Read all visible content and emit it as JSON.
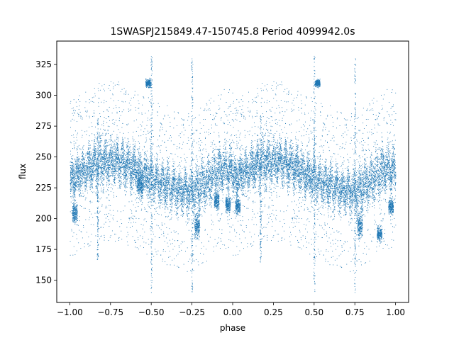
{
  "chart_data": {
    "type": "scatter",
    "title": "1SWASPJ215849.47-150745.8 Period 4099942.0s",
    "xlabel": "phase",
    "ylabel": "flux",
    "xlim": [
      -1.08,
      1.08
    ],
    "ylim": [
      132,
      344
    ],
    "x_ticks": [
      -1.0,
      -0.75,
      -0.5,
      -0.25,
      0.0,
      0.25,
      0.5,
      0.75,
      1.0
    ],
    "x_tick_labels": [
      "−1.00",
      "−0.75",
      "−0.50",
      "−0.25",
      "0.00",
      "0.25",
      "0.50",
      "0.75",
      "1.00"
    ],
    "y_ticks": [
      150,
      175,
      200,
      225,
      250,
      275,
      300,
      325
    ],
    "y_tick_labels": [
      "150",
      "175",
      "200",
      "225",
      "250",
      "275",
      "300",
      "325"
    ],
    "grid": false,
    "marker_color": "#1f77b4",
    "curve_phase": [
      0.0,
      0.05,
      0.1,
      0.15,
      0.2,
      0.25,
      0.3,
      0.35,
      0.4,
      0.45,
      0.5,
      0.55,
      0.6,
      0.65,
      0.7,
      0.75,
      0.8,
      0.85,
      0.9,
      0.95,
      1.0
    ],
    "curve_flux": [
      232,
      236,
      240,
      244,
      246,
      247,
      246,
      244,
      240,
      236,
      232,
      230,
      227,
      224,
      222,
      222,
      226,
      232,
      238,
      241,
      239
    ],
    "curve_spread": [
      14,
      14,
      14,
      16,
      18,
      15,
      14,
      14,
      14,
      14,
      14,
      14,
      14,
      14,
      14,
      15,
      16,
      16,
      18,
      16,
      14
    ],
    "clumps": [
      {
        "phase": -0.97,
        "flux": 205,
        "spread": 8
      },
      {
        "phase": -0.57,
        "flux": 228,
        "spread": 10
      },
      {
        "phase": -0.52,
        "flux": 310,
        "spread": 3
      },
      {
        "phase": -0.22,
        "flux": 195,
        "spread": 10
      },
      {
        "phase": -0.1,
        "flux": 215,
        "spread": 7
      },
      {
        "phase": -0.03,
        "flux": 212,
        "spread": 6
      },
      {
        "phase": 0.03,
        "flux": 210,
        "spread": 6
      },
      {
        "phase": 0.52,
        "flux": 310,
        "spread": 3
      },
      {
        "phase": 0.78,
        "flux": 195,
        "spread": 10
      },
      {
        "phase": 0.9,
        "flux": 188,
        "spread": 6
      },
      {
        "phase": 0.97,
        "flux": 210,
        "spread": 6
      }
    ],
    "spikes": [
      {
        "phase": -0.5,
        "from": 140,
        "to": 332
      },
      {
        "phase": -0.25,
        "from": 140,
        "to": 330
      },
      {
        "phase": -0.83,
        "from": 165,
        "to": 285
      },
      {
        "phase": 0.5,
        "from": 140,
        "to": 332
      },
      {
        "phase": 0.75,
        "from": 140,
        "to": 330
      },
      {
        "phase": 0.17,
        "from": 165,
        "to": 285
      }
    ]
  }
}
